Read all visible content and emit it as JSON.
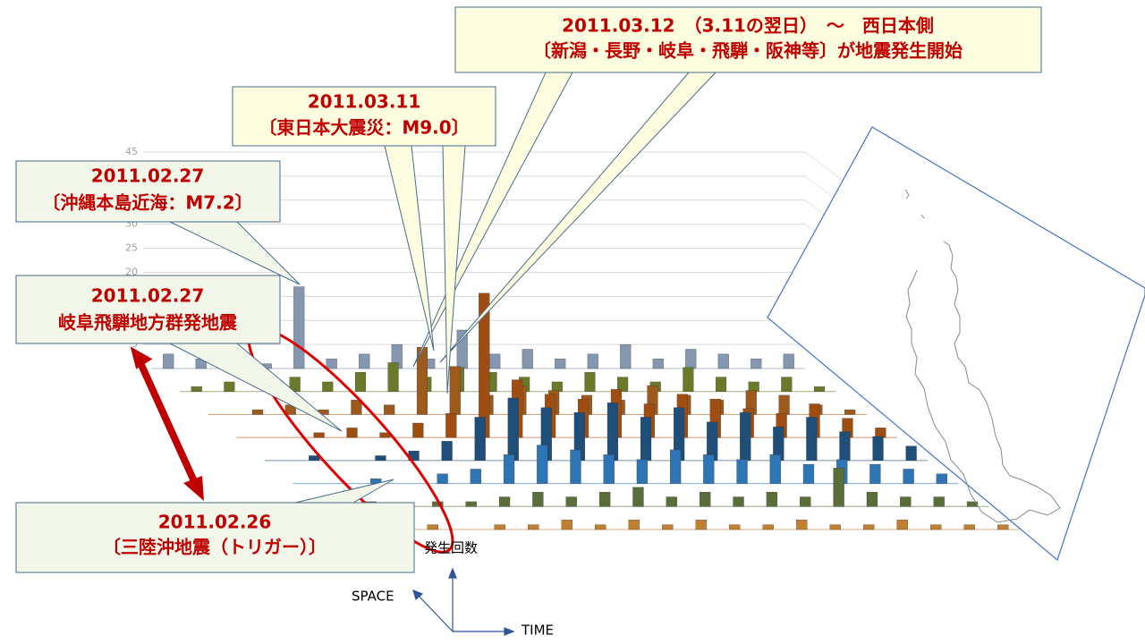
{
  "annotations": [
    {
      "lines": [
        "2011.03.12　（3.11の翌日）　～　西日本側",
        "〔新潟・長野・岐阜・飛騨・阪神等〕が地震発生開始"
      ]
    },
    {
      "lines": [
        "2011.03.11",
        "〔東日本大震災：M9.0〕"
      ]
    },
    {
      "lines": [
        "2011.02.27",
        "〔沖縄本島近海：M7.2〕"
      ]
    },
    {
      "lines": [
        "2011.02.27",
        "岐阜飛騨地方群発地震"
      ]
    },
    {
      "lines": [
        "2011.02.26",
        "〔三陸沖地震（トリガー）〕"
      ]
    }
  ],
  "axes": {
    "count": "発生回数",
    "space": "SPACE",
    "time": "TIME"
  },
  "chart_data": {
    "type": "bar3d",
    "ylim": [
      0,
      45
    ],
    "yticks": [
      5,
      10,
      15,
      20,
      25,
      30,
      35,
      40,
      45
    ],
    "grid": true,
    "series": [
      {
        "color": "#8496b0",
        "values": [
          3,
          2,
          4,
          1,
          17,
          2,
          3,
          5,
          2,
          8,
          3,
          4,
          2,
          3,
          5,
          2,
          4,
          3,
          2,
          3
        ]
      },
      {
        "color": "#6b7a2a",
        "values": [
          1,
          2,
          0,
          3,
          2,
          4,
          6,
          3,
          5,
          4,
          3,
          2,
          4,
          3,
          2,
          5,
          3,
          2,
          3,
          1
        ]
      },
      {
        "color": "#9c5a1c",
        "values": [
          0,
          1,
          2,
          1,
          3,
          2,
          14,
          10,
          4,
          6,
          5,
          4,
          3,
          6,
          4,
          3,
          5,
          4,
          2,
          1
        ]
      },
      {
        "color": "#a04d12",
        "values": [
          0,
          0,
          1,
          2,
          1,
          3,
          5,
          30,
          12,
          9,
          8,
          10,
          7,
          9,
          8,
          6,
          5,
          7,
          4,
          2
        ]
      },
      {
        "color": "#1f4e79",
        "values": [
          0,
          1,
          0,
          1,
          2,
          4,
          9,
          13,
          11,
          10,
          12,
          9,
          11,
          8,
          10,
          7,
          9,
          6,
          5,
          3
        ]
      },
      {
        "color": "#2e75b6",
        "values": [
          0,
          0,
          1,
          0,
          2,
          3,
          6,
          8,
          7,
          6,
          5,
          7,
          6,
          5,
          6,
          4,
          5,
          4,
          3,
          2
        ]
      },
      {
        "color": "#5a6e3a",
        "values": [
          0,
          1,
          0,
          1,
          1,
          2,
          3,
          2,
          3,
          4,
          2,
          3,
          2,
          3,
          2,
          8,
          3,
          2,
          2,
          1
        ]
      },
      {
        "color": "#c08030",
        "values": [
          0,
          0,
          1,
          0,
          1,
          1,
          2,
          1,
          2,
          1,
          2,
          1,
          1,
          2,
          1,
          1,
          2,
          1,
          1,
          1
        ]
      }
    ]
  }
}
